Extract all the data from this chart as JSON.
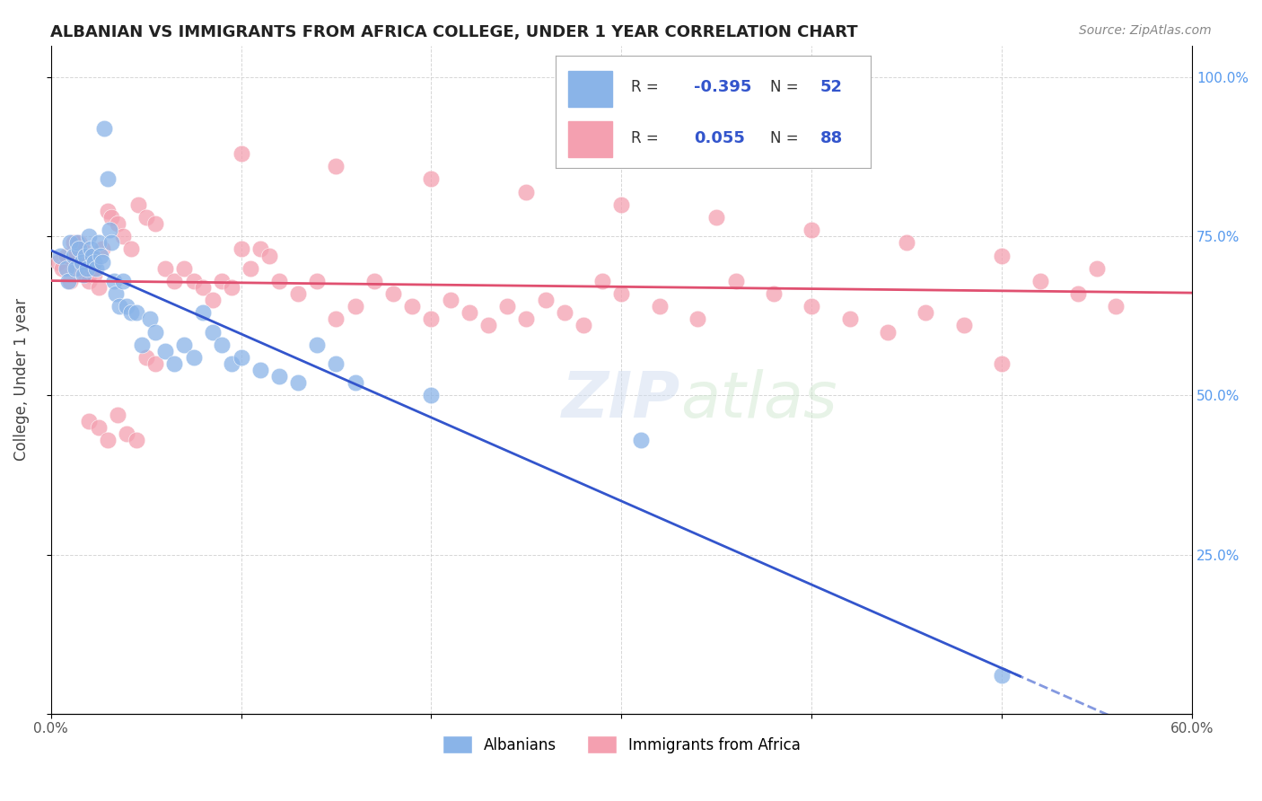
{
  "title": "ALBANIAN VS IMMIGRANTS FROM AFRICA COLLEGE, UNDER 1 YEAR CORRELATION CHART",
  "source": "Source: ZipAtlas.com",
  "xlabel": "",
  "ylabel": "College, Under 1 year",
  "xlim": [
    0.0,
    0.6
  ],
  "ylim": [
    0.0,
    1.05
  ],
  "xticks": [
    0.0,
    0.1,
    0.2,
    0.3,
    0.4,
    0.5,
    0.6
  ],
  "xticklabels": [
    "0.0%",
    "",
    "",
    "",
    "",
    "",
    "60.0%"
  ],
  "yticks_left": [
    0.0,
    0.25,
    0.5,
    0.75,
    1.0
  ],
  "yticks_right": [
    0.0,
    0.25,
    0.5,
    0.75,
    1.0
  ],
  "yticklabels_right": [
    "",
    "25.0%",
    "50.0%",
    "75.0%",
    "100.0%"
  ],
  "legend_labels": [
    "Albanians",
    "Immigrants from Africa"
  ],
  "R_blue": -0.395,
  "N_blue": 52,
  "R_pink": 0.055,
  "N_pink": 88,
  "blue_color": "#8ab4e8",
  "pink_color": "#f4a0b0",
  "line_blue": "#3355cc",
  "line_pink": "#e05070",
  "watermark": "ZIPatlas",
  "albanian_x": [
    0.005,
    0.008,
    0.009,
    0.01,
    0.012,
    0.013,
    0.014,
    0.015,
    0.016,
    0.017,
    0.018,
    0.019,
    0.02,
    0.021,
    0.022,
    0.023,
    0.024,
    0.025,
    0.026,
    0.027,
    0.028,
    0.03,
    0.031,
    0.032,
    0.033,
    0.034,
    0.036,
    0.038,
    0.04,
    0.042,
    0.045,
    0.048,
    0.052,
    0.055,
    0.06,
    0.065,
    0.07,
    0.075,
    0.08,
    0.085,
    0.09,
    0.095,
    0.1,
    0.11,
    0.12,
    0.13,
    0.14,
    0.15,
    0.16,
    0.2,
    0.31,
    0.5
  ],
  "albanian_y": [
    0.72,
    0.7,
    0.68,
    0.74,
    0.72,
    0.7,
    0.74,
    0.73,
    0.71,
    0.69,
    0.72,
    0.7,
    0.75,
    0.73,
    0.72,
    0.71,
    0.7,
    0.74,
    0.72,
    0.71,
    0.92,
    0.84,
    0.76,
    0.74,
    0.68,
    0.66,
    0.64,
    0.68,
    0.64,
    0.63,
    0.63,
    0.58,
    0.62,
    0.6,
    0.57,
    0.55,
    0.58,
    0.56,
    0.63,
    0.6,
    0.58,
    0.55,
    0.56,
    0.54,
    0.53,
    0.52,
    0.58,
    0.55,
    0.52,
    0.5,
    0.43,
    0.06
  ],
  "immigrant_x": [
    0.004,
    0.006,
    0.008,
    0.01,
    0.012,
    0.013,
    0.014,
    0.015,
    0.016,
    0.017,
    0.018,
    0.019,
    0.02,
    0.021,
    0.022,
    0.023,
    0.025,
    0.027,
    0.03,
    0.032,
    0.035,
    0.038,
    0.042,
    0.046,
    0.05,
    0.055,
    0.06,
    0.065,
    0.07,
    0.075,
    0.08,
    0.085,
    0.09,
    0.095,
    0.1,
    0.105,
    0.11,
    0.115,
    0.12,
    0.13,
    0.14,
    0.15,
    0.16,
    0.17,
    0.18,
    0.19,
    0.2,
    0.21,
    0.22,
    0.23,
    0.24,
    0.25,
    0.26,
    0.27,
    0.28,
    0.29,
    0.3,
    0.32,
    0.34,
    0.36,
    0.38,
    0.4,
    0.42,
    0.44,
    0.46,
    0.48,
    0.5,
    0.52,
    0.54,
    0.56,
    0.1,
    0.15,
    0.2,
    0.25,
    0.3,
    0.35,
    0.4,
    0.45,
    0.5,
    0.55,
    0.02,
    0.025,
    0.03,
    0.035,
    0.04,
    0.045,
    0.05,
    0.055
  ],
  "immigrant_y": [
    0.71,
    0.7,
    0.72,
    0.68,
    0.74,
    0.72,
    0.7,
    0.74,
    0.73,
    0.71,
    0.69,
    0.71,
    0.68,
    0.72,
    0.7,
    0.69,
    0.67,
    0.73,
    0.79,
    0.78,
    0.77,
    0.75,
    0.73,
    0.8,
    0.78,
    0.77,
    0.7,
    0.68,
    0.7,
    0.68,
    0.67,
    0.65,
    0.68,
    0.67,
    0.73,
    0.7,
    0.73,
    0.72,
    0.68,
    0.66,
    0.68,
    0.62,
    0.64,
    0.68,
    0.66,
    0.64,
    0.62,
    0.65,
    0.63,
    0.61,
    0.64,
    0.62,
    0.65,
    0.63,
    0.61,
    0.68,
    0.66,
    0.64,
    0.62,
    0.68,
    0.66,
    0.64,
    0.62,
    0.6,
    0.63,
    0.61,
    0.55,
    0.68,
    0.66,
    0.64,
    0.88,
    0.86,
    0.84,
    0.82,
    0.8,
    0.78,
    0.76,
    0.74,
    0.72,
    0.7,
    0.46,
    0.45,
    0.43,
    0.47,
    0.44,
    0.43,
    0.56,
    0.55
  ]
}
